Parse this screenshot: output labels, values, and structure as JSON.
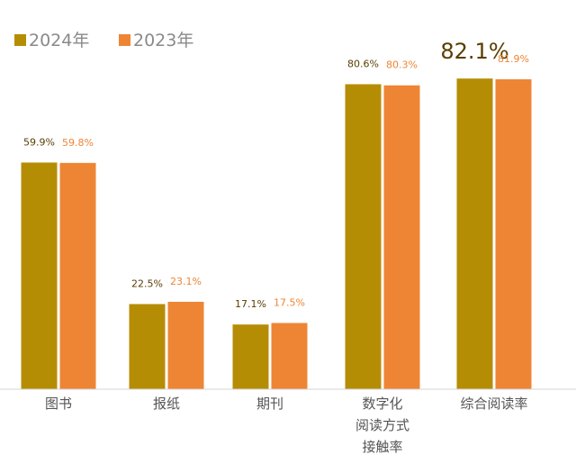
{
  "chart_data": {
    "type": "bar",
    "categories": [
      "图书",
      "报纸",
      "期刊",
      "数字化阅读方式接触率",
      "综合阅读率"
    ],
    "category_lines": [
      [
        "图书"
      ],
      [
        "报纸"
      ],
      [
        "期刊"
      ],
      [
        "数字化",
        "阅读方式",
        "接触率"
      ],
      [
        "综合阅读率"
      ]
    ],
    "series": [
      {
        "name": "2024年",
        "values": [
          59.9,
          22.5,
          17.1,
          80.6,
          82.1
        ],
        "labels": [
          "59.9%",
          "22.5%",
          "17.1%",
          "80.6%",
          "82.1%"
        ],
        "color": "#b58d05"
      },
      {
        "name": "2023年",
        "values": [
          59.8,
          23.1,
          17.5,
          80.3,
          81.9
        ],
        "labels": [
          "59.8%",
          "23.1%",
          "17.5%",
          "80.3%",
          "81.9%"
        ],
        "color": "#ee8535"
      }
    ],
    "label_colors": [
      "#5a3d00",
      "#ee8535"
    ],
    "ylim": [
      0,
      100
    ],
    "legend": "top-left",
    "grid": false,
    "highlighted_label": {
      "series": 0,
      "category": 4
    }
  }
}
